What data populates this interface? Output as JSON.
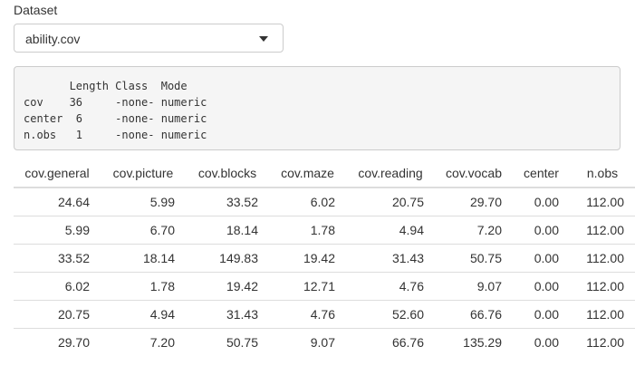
{
  "dataset": {
    "label": "Dataset",
    "selected": "ability.cov"
  },
  "summary": {
    "lines": [
      "       Length Class  Mode   ",
      "cov    36     -none- numeric",
      "center  6     -none- numeric",
      "n.obs   1     -none- numeric"
    ]
  },
  "table": {
    "columns": [
      "cov.general",
      "cov.picture",
      "cov.blocks",
      "cov.maze",
      "cov.reading",
      "cov.vocab",
      "center",
      "n.obs"
    ],
    "rows": [
      [
        "24.64",
        "5.99",
        "33.52",
        "6.02",
        "20.75",
        "29.70",
        "0.00",
        "112.00"
      ],
      [
        "5.99",
        "6.70",
        "18.14",
        "1.78",
        "4.94",
        "7.20",
        "0.00",
        "112.00"
      ],
      [
        "33.52",
        "18.14",
        "149.83",
        "19.42",
        "31.43",
        "50.75",
        "0.00",
        "112.00"
      ],
      [
        "6.02",
        "1.78",
        "19.42",
        "12.71",
        "4.76",
        "9.07",
        "0.00",
        "112.00"
      ],
      [
        "20.75",
        "4.94",
        "31.43",
        "4.76",
        "52.60",
        "66.76",
        "0.00",
        "112.00"
      ],
      [
        "29.70",
        "7.20",
        "50.75",
        "9.07",
        "66.76",
        "135.29",
        "0.00",
        "112.00"
      ]
    ]
  },
  "icons": {
    "dropdown": "caret-down-icon"
  }
}
